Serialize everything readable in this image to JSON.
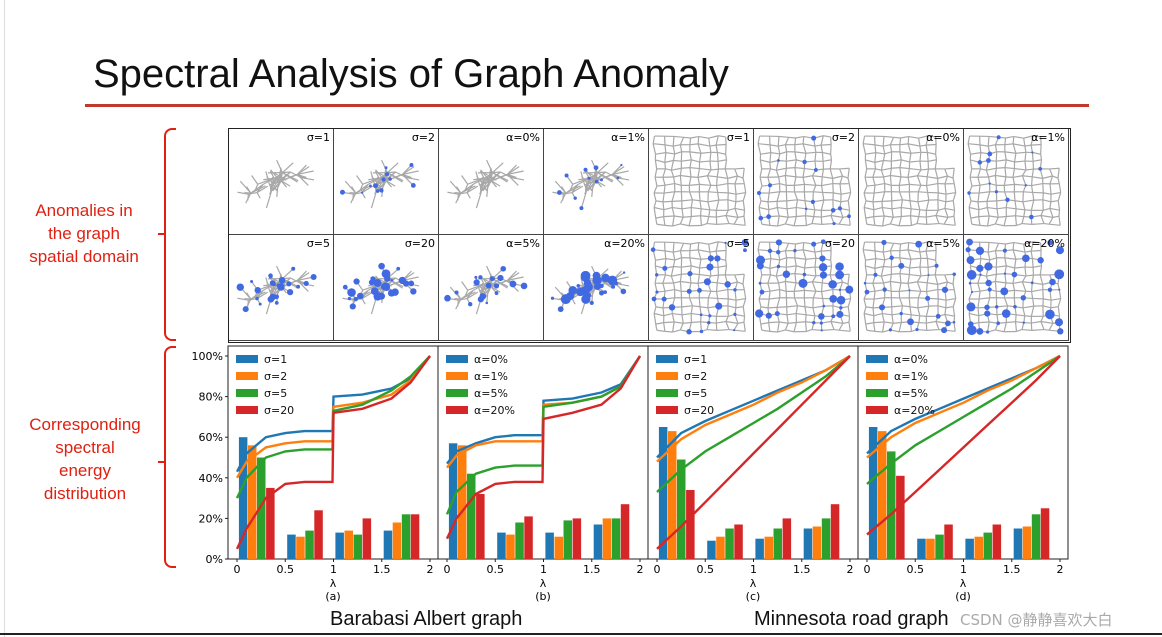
{
  "slide": {
    "title": "Spectral Analysis of Graph Anomaly",
    "left_label_top": [
      "Anomalies in",
      "the graph",
      "spatial domain"
    ],
    "left_label_bottom": [
      "Corresponding",
      "spectral",
      "energy",
      "distribution"
    ],
    "caption_left": "Barabasi Albert graph",
    "caption_right": "Minnesota road graph",
    "watermark": "CSDN @静静喜欢大白",
    "accent_color": "#e02010"
  },
  "panels": {
    "row1": [
      "σ=1",
      "σ=2",
      "α=0%",
      "α=1%",
      "σ=1",
      "σ=2",
      "α=0%",
      "α=1%"
    ],
    "row2": [
      "σ=5",
      "σ=20",
      "α=5%",
      "α=20%",
      "σ=5",
      "σ=20",
      "α=5%",
      "α=20%"
    ]
  },
  "chart_data": [
    {
      "type": "bar",
      "subcaption": "(a)",
      "xlabel": "λ",
      "xticks": [
        "0",
        "0.5",
        "1",
        "1.5",
        "2"
      ],
      "yticks": [
        "0%",
        "20%",
        "40%",
        "60%",
        "80%",
        "100%"
      ],
      "ylim": [
        0,
        100
      ],
      "xlim": [
        0,
        2
      ],
      "categories": [
        "[0,0.5)",
        "[0.5,1)",
        "[1,1.5)",
        "[1.5,2]"
      ],
      "series": [
        {
          "name": "σ=1",
          "color": "#1f77b4",
          "values": [
            60,
            12,
            13,
            14
          ]
        },
        {
          "name": "σ=2",
          "color": "#ff7f0e",
          "values": [
            56,
            11,
            14,
            18
          ]
        },
        {
          "name": "σ=5",
          "color": "#2ca02c",
          "values": [
            50,
            14,
            12,
            22
          ]
        },
        {
          "name": "σ=20",
          "color": "#d62728",
          "values": [
            35,
            24,
            20,
            22
          ]
        }
      ],
      "curves": [
        {
          "name": "σ=1",
          "color": "#1f77b4",
          "x": [
            0,
            0.1,
            0.3,
            0.5,
            0.7,
            0.99,
            1.0,
            1.3,
            1.6,
            1.8,
            2.0
          ],
          "y": [
            43,
            52,
            60,
            62,
            63,
            63,
            80,
            81,
            84,
            89,
            100
          ]
        },
        {
          "name": "σ=2",
          "color": "#ff7f0e",
          "x": [
            0,
            0.1,
            0.3,
            0.5,
            0.7,
            0.99,
            1.0,
            1.3,
            1.6,
            1.8,
            2.0
          ],
          "y": [
            40,
            48,
            55,
            57,
            58,
            58,
            75,
            77,
            81,
            88,
            100
          ]
        },
        {
          "name": "σ=5",
          "color": "#2ca02c",
          "x": [
            0,
            0.1,
            0.3,
            0.5,
            0.7,
            0.99,
            1.0,
            1.3,
            1.6,
            1.8,
            2.0
          ],
          "y": [
            30,
            40,
            50,
            53,
            54,
            54,
            73,
            76,
            83,
            90,
            100
          ]
        },
        {
          "name": "σ=20",
          "color": "#d62728",
          "x": [
            0,
            0.1,
            0.3,
            0.5,
            0.7,
            0.99,
            1.0,
            1.3,
            1.6,
            1.8,
            2.0
          ],
          "y": [
            5,
            15,
            30,
            37,
            38,
            38,
            72,
            74,
            79,
            87,
            100
          ]
        }
      ]
    },
    {
      "type": "bar",
      "subcaption": "(b)",
      "xlabel": "λ",
      "xticks": [
        "0",
        "0.5",
        "1",
        "1.5",
        "2"
      ],
      "yticks": [
        "0%",
        "20%",
        "40%",
        "60%",
        "80%",
        "100%"
      ],
      "ylim": [
        0,
        100
      ],
      "xlim": [
        0,
        2
      ],
      "categories": [
        "[0,0.5)",
        "[0.5,1)",
        "[1,1.5)",
        "[1.5,2]"
      ],
      "series": [
        {
          "name": "α=0%",
          "color": "#1f77b4",
          "values": [
            57,
            13,
            13,
            17
          ]
        },
        {
          "name": "α=1%",
          "color": "#ff7f0e",
          "values": [
            56,
            12,
            11,
            20
          ]
        },
        {
          "name": "α=5%",
          "color": "#2ca02c",
          "values": [
            42,
            18,
            19,
            20
          ]
        },
        {
          "name": "α=20%",
          "color": "#d62728",
          "values": [
            32,
            21,
            20,
            27
          ]
        }
      ],
      "curves": [
        {
          "name": "α=0%",
          "color": "#1f77b4",
          "x": [
            0,
            0.1,
            0.3,
            0.5,
            0.7,
            0.99,
            1.0,
            1.3,
            1.6,
            1.8,
            2.0
          ],
          "y": [
            47,
            53,
            57,
            60,
            61,
            61,
            78,
            79,
            82,
            86,
            100
          ]
        },
        {
          "name": "α=1%",
          "color": "#ff7f0e",
          "x": [
            0,
            0.1,
            0.3,
            0.5,
            0.7,
            0.99,
            1.0,
            1.3,
            1.6,
            1.8,
            2.0
          ],
          "y": [
            45,
            51,
            56,
            58,
            58,
            58,
            76,
            77,
            80,
            85,
            100
          ]
        },
        {
          "name": "α=5%",
          "color": "#2ca02c",
          "x": [
            0,
            0.1,
            0.3,
            0.5,
            0.7,
            0.99,
            1.0,
            1.3,
            1.6,
            1.8,
            2.0
          ],
          "y": [
            22,
            33,
            42,
            45,
            46,
            46,
            75,
            77,
            80,
            85,
            100
          ]
        },
        {
          "name": "α=20%",
          "color": "#d62728",
          "x": [
            0,
            0.1,
            0.3,
            0.5,
            0.7,
            0.99,
            1.0,
            1.3,
            1.6,
            1.8,
            2.0
          ],
          "y": [
            10,
            20,
            32,
            37,
            38,
            38,
            69,
            72,
            76,
            84,
            100
          ]
        }
      ]
    },
    {
      "type": "bar",
      "subcaption": "(c)",
      "xlabel": "λ",
      "xticks": [
        "0",
        "0.5",
        "1",
        "1.5",
        "2"
      ],
      "yticks": [
        "0%",
        "20%",
        "40%",
        "60%",
        "80%",
        "100%"
      ],
      "ylim": [
        0,
        100
      ],
      "xlim": [
        0,
        2
      ],
      "categories": [
        "[0,0.5)",
        "[0.5,1)",
        "[1,1.5)",
        "[1.5,2]"
      ],
      "series": [
        {
          "name": "σ=1",
          "color": "#1f77b4",
          "values": [
            65,
            9,
            10,
            15
          ]
        },
        {
          "name": "σ=2",
          "color": "#ff7f0e",
          "values": [
            63,
            11,
            11,
            16
          ]
        },
        {
          "name": "σ=5",
          "color": "#2ca02c",
          "values": [
            49,
            15,
            15,
            20
          ]
        },
        {
          "name": "σ=20",
          "color": "#d62728",
          "values": [
            34,
            17,
            20,
            27
          ]
        }
      ],
      "curves": [
        {
          "name": "σ=1",
          "color": "#1f77b4",
          "x": [
            0,
            0.25,
            0.5,
            0.75,
            1.0,
            1.25,
            1.5,
            1.75,
            2.0
          ],
          "y": [
            50,
            62,
            68,
            73,
            78,
            83,
            88,
            93,
            100
          ]
        },
        {
          "name": "σ=2",
          "color": "#ff7f0e",
          "x": [
            0,
            0.25,
            0.5,
            0.75,
            1.0,
            1.25,
            1.5,
            1.75,
            2.0
          ],
          "y": [
            48,
            59,
            66,
            71,
            76,
            82,
            87,
            93,
            100
          ]
        },
        {
          "name": "σ=5",
          "color": "#2ca02c",
          "x": [
            0,
            0.25,
            0.5,
            0.75,
            1.0,
            1.25,
            1.5,
            1.75,
            2.0
          ],
          "y": [
            33,
            44,
            53,
            60,
            67,
            74,
            82,
            90,
            100
          ]
        },
        {
          "name": "σ=20",
          "color": "#d62728",
          "x": [
            0,
            0.25,
            0.5,
            0.75,
            1.0,
            1.25,
            1.5,
            1.75,
            2.0
          ],
          "y": [
            5,
            16,
            28,
            40,
            52,
            64,
            76,
            88,
            100
          ]
        }
      ]
    },
    {
      "type": "bar",
      "subcaption": "(d)",
      "xlabel": "λ",
      "xticks": [
        "0",
        "0.5",
        "1",
        "1.5",
        "2"
      ],
      "yticks": [
        "0%",
        "20%",
        "40%",
        "60%",
        "80%",
        "100%"
      ],
      "ylim": [
        0,
        100
      ],
      "xlim": [
        0,
        2
      ],
      "categories": [
        "[0,0.5)",
        "[0.5,1)",
        "[1,1.5)",
        "[1.5,2]"
      ],
      "series": [
        {
          "name": "α=0%",
          "color": "#1f77b4",
          "values": [
            65,
            10,
            10,
            15
          ]
        },
        {
          "name": "α=1%",
          "color": "#ff7f0e",
          "values": [
            63,
            10,
            11,
            16
          ]
        },
        {
          "name": "α=5%",
          "color": "#2ca02c",
          "values": [
            53,
            12,
            13,
            22
          ]
        },
        {
          "name": "α=20%",
          "color": "#d62728",
          "values": [
            41,
            17,
            17,
            25
          ]
        }
      ],
      "curves": [
        {
          "name": "α=0%",
          "color": "#1f77b4",
          "x": [
            0,
            0.25,
            0.5,
            0.75,
            1.0,
            1.25,
            1.5,
            1.75,
            2.0
          ],
          "y": [
            52,
            63,
            69,
            74,
            79,
            84,
            89,
            94,
            100
          ]
        },
        {
          "name": "α=1%",
          "color": "#ff7f0e",
          "x": [
            0,
            0.25,
            0.5,
            0.75,
            1.0,
            1.25,
            1.5,
            1.75,
            2.0
          ],
          "y": [
            50,
            60,
            67,
            72,
            77,
            83,
            88,
            94,
            100
          ]
        },
        {
          "name": "α=5%",
          "color": "#2ca02c",
          "x": [
            0,
            0.25,
            0.5,
            0.75,
            1.0,
            1.25,
            1.5,
            1.75,
            2.0
          ],
          "y": [
            37,
            47,
            56,
            63,
            70,
            77,
            84,
            92,
            100
          ]
        },
        {
          "name": "α=20%",
          "color": "#d62728",
          "x": [
            0,
            0.25,
            0.5,
            0.75,
            1.0,
            1.25,
            1.5,
            1.75,
            2.0
          ],
          "y": [
            12,
            22,
            33,
            44,
            55,
            66,
            77,
            88,
            100
          ]
        }
      ]
    }
  ]
}
